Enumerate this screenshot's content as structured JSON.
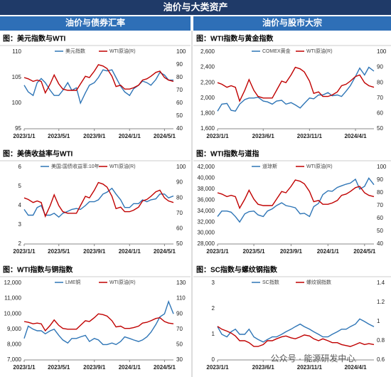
{
  "header": {
    "title": "油价与大类资产",
    "columns": [
      "油价与债券汇率",
      "油价与股市大宗"
    ]
  },
  "watermark": "公众号 · 能源研发中心",
  "chart_data": [
    {
      "type": "line",
      "title": "图：美元指数与WTI",
      "x": [
        "2023/1/1",
        "2023/1/15",
        "2023/2/1",
        "2023/2/15",
        "2023/3/1",
        "2023/3/15",
        "2023/4/1",
        "2023/4/15",
        "2023/5/1",
        "2023/5/15",
        "2023/6/1",
        "2023/6/15",
        "2023/7/1",
        "2023/7/15",
        "2023/8/1",
        "2023/8/15",
        "2023/9/1",
        "2023/9/15",
        "2023/10/1",
        "2023/10/15",
        "2023/11/1",
        "2023/11/15",
        "2023/12/1",
        "2023/12/15",
        "2024/1/1",
        "2024/1/15",
        "2024/2/1",
        "2024/2/15",
        "2024/3/1",
        "2024/3/15",
        "2024/4/1",
        "2024/4/15",
        "2024/5/1",
        "2024/5/15",
        "2024/6/1"
      ],
      "xlim": [
        "2023/1/1",
        "2024/6/1"
      ],
      "xticks": [
        "2023/1/1",
        "2023/5/1",
        "2023/9/1",
        "2024/1/1",
        "2024/5/1"
      ],
      "ylim": [
        95,
        110
      ],
      "yticks": [
        95,
        100,
        105,
        110
      ],
      "y2lim": [
        40,
        100
      ],
      "y2ticks": [
        40,
        50,
        60,
        70,
        80,
        90,
        100
      ],
      "series": [
        {
          "name": "美元指数",
          "color": "#2e75b6",
          "values": [
            103.5,
            102.2,
            101.5,
            104,
            104.8,
            104,
            102.5,
            101.5,
            101.5,
            102.5,
            104,
            102.5,
            103,
            100,
            102,
            103.5,
            104,
            105,
            106.5,
            106.3,
            106.5,
            105,
            103.3,
            102.2,
            101.5,
            102.8,
            103.5,
            104.3,
            104,
            103.5,
            104.6,
            106,
            105.5,
            104.5,
            104.5
          ]
        },
        {
          "name": "WTI原油(R)",
          "color": "#c00000",
          "axis": "y2",
          "values": [
            80,
            79,
            77,
            78,
            77,
            68,
            75,
            82,
            75,
            71,
            70,
            70,
            70,
            75,
            81,
            80,
            85,
            90,
            89,
            87,
            81,
            73,
            74,
            71,
            71,
            72,
            74,
            78,
            79,
            81,
            84,
            85,
            80,
            78,
            77
          ]
        }
      ]
    },
    {
      "type": "line",
      "title": "图：WTI指数与黄金指数",
      "x": [
        "2023/1/1",
        "2023/1/15",
        "2023/2/1",
        "2023/2/15",
        "2023/3/1",
        "2023/3/15",
        "2023/4/1",
        "2023/4/15",
        "2023/5/1",
        "2023/5/15",
        "2023/6/1",
        "2023/6/15",
        "2023/7/1",
        "2023/7/15",
        "2023/8/1",
        "2023/8/15",
        "2023/9/1",
        "2023/9/15",
        "2023/10/1",
        "2023/10/15",
        "2023/11/1",
        "2023/11/15",
        "2023/12/1",
        "2023/12/15",
        "2024/1/1",
        "2024/1/15",
        "2024/2/1",
        "2024/2/15",
        "2024/3/1",
        "2024/3/15",
        "2024/4/1",
        "2024/4/15",
        "2024/5/1",
        "2024/5/15",
        "2024/6/1"
      ],
      "xlim": [
        "2023/1/1",
        "2024/6/1"
      ],
      "xticks": [
        "2023/1/1",
        "2023/6/1",
        "2023/11/1",
        "2024/4/1"
      ],
      "ylim": [
        1600,
        2600
      ],
      "yticks": [
        {
          "value": 1600,
          "label": "1,600"
        },
        {
          "value": 1800,
          "label": "1,800"
        },
        {
          "value": 2000,
          "label": "2,000"
        },
        {
          "value": 2200,
          "label": "2,200"
        },
        {
          "value": 2400,
          "label": "2,400"
        },
        {
          "value": 2600,
          "label": "2,600"
        }
      ],
      "y2lim": [
        50,
        100
      ],
      "y2ticks": [
        50,
        60,
        70,
        80,
        90,
        100
      ],
      "series": [
        {
          "name": "COMEX黄金",
          "color": "#2e75b6",
          "values": [
            1830,
            1920,
            1930,
            1840,
            1830,
            1920,
            1980,
            2000,
            2000,
            2010,
            1960,
            1950,
            1920,
            1960,
            1970,
            1920,
            1940,
            1910,
            1870,
            1930,
            2000,
            1990,
            2040,
            2040,
            2070,
            2030,
            2040,
            2020,
            2090,
            2160,
            2280,
            2390,
            2300,
            2400,
            2350
          ]
        },
        {
          "name": "WTI原油(R)",
          "color": "#c00000",
          "axis": "y2",
          "values": [
            80,
            79,
            77,
            78,
            77,
            68,
            75,
            82,
            75,
            71,
            70,
            70,
            70,
            75,
            81,
            80,
            85,
            90,
            89,
            87,
            81,
            73,
            74,
            71,
            71,
            72,
            74,
            78,
            79,
            81,
            84,
            85,
            80,
            78,
            77
          ]
        }
      ]
    },
    {
      "type": "line",
      "title": "图：美债收益率与WTI",
      "x": [
        "2023/1/1",
        "2023/1/15",
        "2023/2/1",
        "2023/2/15",
        "2023/3/1",
        "2023/3/15",
        "2023/4/1",
        "2023/4/15",
        "2023/5/1",
        "2023/5/15",
        "2023/6/1",
        "2023/6/15",
        "2023/7/1",
        "2023/7/15",
        "2023/8/1",
        "2023/8/15",
        "2023/9/1",
        "2023/9/15",
        "2023/10/1",
        "2023/10/15",
        "2023/11/1",
        "2023/11/15",
        "2023/12/1",
        "2023/12/15",
        "2024/1/1",
        "2024/1/15",
        "2024/2/1",
        "2024/2/15",
        "2024/3/1",
        "2024/3/15",
        "2024/4/1",
        "2024/4/15",
        "2024/5/1",
        "2024/5/15",
        "2024/6/1"
      ],
      "xlim": [
        "2023/1/1",
        "2024/6/1"
      ],
      "xticks": [
        "2023/1/1",
        "2023/5/1",
        "2023/9/1",
        "2024/1/1",
        "2024/5/1"
      ],
      "ylim": [
        2,
        6
      ],
      "yticks": [
        2,
        3,
        4,
        5,
        6
      ],
      "y2lim": [
        50,
        100
      ],
      "y2ticks": [
        50,
        60,
        70,
        80,
        90,
        100
      ],
      "series": [
        {
          "name": "美国:国债收益率:10年",
          "color": "#2e75b6",
          "values": [
            3.8,
            3.5,
            3.5,
            3.9,
            4.0,
            3.5,
            3.5,
            3.6,
            3.4,
            3.6,
            3.7,
            3.8,
            3.85,
            3.8,
            4.0,
            4.2,
            4.2,
            4.3,
            4.6,
            4.7,
            4.9,
            4.6,
            4.3,
            3.9,
            3.9,
            4.1,
            4.1,
            4.3,
            4.2,
            4.3,
            4.35,
            4.6,
            4.6,
            4.4,
            4.5
          ]
        },
        {
          "name": "WTI原油(R)",
          "color": "#c00000",
          "axis": "y2",
          "values": [
            80,
            79,
            77,
            78,
            77,
            68,
            75,
            82,
            75,
            71,
            70,
            70,
            70,
            75,
            81,
            80,
            85,
            90,
            89,
            87,
            81,
            73,
            74,
            71,
            71,
            72,
            74,
            78,
            79,
            81,
            84,
            85,
            80,
            78,
            77
          ]
        }
      ]
    },
    {
      "type": "line",
      "title": "图：WTI指数与道指",
      "x": [
        "2023/1/1",
        "2023/1/15",
        "2023/2/1",
        "2023/2/15",
        "2023/3/1",
        "2023/3/15",
        "2023/4/1",
        "2023/4/15",
        "2023/5/1",
        "2023/5/15",
        "2023/6/1",
        "2023/6/15",
        "2023/7/1",
        "2023/7/15",
        "2023/8/1",
        "2023/8/15",
        "2023/9/1",
        "2023/9/15",
        "2023/10/1",
        "2023/10/15",
        "2023/11/1",
        "2023/11/15",
        "2023/12/1",
        "2023/12/15",
        "2024/1/1",
        "2024/1/15",
        "2024/2/1",
        "2024/2/15",
        "2024/3/1",
        "2024/3/15",
        "2024/4/1",
        "2024/4/15",
        "2024/5/1",
        "2024/5/15",
        "2024/6/1"
      ],
      "xlim": [
        "2023/1/1",
        "2024/6/1"
      ],
      "xticks": [
        "2023/1/1",
        "2023/5/1",
        "2023/9/1",
        "2024/1/1",
        "2024/5/1"
      ],
      "ylim": [
        28000,
        42000
      ],
      "yticks": [
        {
          "value": 28000,
          "label": "28,000"
        },
        {
          "value": 30000,
          "label": "30,000"
        },
        {
          "value": 32000,
          "label": "32,000"
        },
        {
          "value": 34000,
          "label": "34,000"
        },
        {
          "value": 36000,
          "label": "36,000"
        },
        {
          "value": 38000,
          "label": "38,000"
        },
        {
          "value": 40000,
          "label": "40,000"
        },
        {
          "value": 42000,
          "label": "42,000"
        }
      ],
      "y2lim": [
        40,
        100
      ],
      "y2ticks": [
        40,
        50,
        60,
        70,
        80,
        90,
        100
      ],
      "series": [
        {
          "name": "道琼斯",
          "color": "#2e75b6",
          "values": [
            33000,
            34000,
            34000,
            33800,
            33000,
            32000,
            33500,
            33900,
            34000,
            33300,
            33000,
            34000,
            34400,
            35000,
            35500,
            35000,
            34800,
            34600,
            33500,
            33600,
            33000,
            34800,
            35400,
            37000,
            37700,
            37600,
            38300,
            38600,
            38900,
            39100,
            39800,
            38000,
            38500,
            40000,
            38800
          ]
        },
        {
          "name": "WTI原油(R)",
          "color": "#c00000",
          "axis": "y2",
          "values": [
            80,
            79,
            77,
            78,
            77,
            68,
            75,
            82,
            75,
            71,
            70,
            70,
            70,
            75,
            81,
            80,
            85,
            90,
            89,
            87,
            81,
            73,
            74,
            71,
            71,
            72,
            74,
            78,
            79,
            81,
            84,
            85,
            80,
            78,
            77
          ]
        }
      ]
    },
    {
      "type": "line",
      "title": "图：WTI指数与铜指数",
      "x": [
        "2023/1/1",
        "2023/1/15",
        "2023/2/1",
        "2023/2/15",
        "2023/3/1",
        "2023/3/15",
        "2023/4/1",
        "2023/4/15",
        "2023/5/1",
        "2023/5/15",
        "2023/6/1",
        "2023/6/15",
        "2023/7/1",
        "2023/7/15",
        "2023/8/1",
        "2023/8/15",
        "2023/9/1",
        "2023/9/15",
        "2023/10/1",
        "2023/10/15",
        "2023/11/1",
        "2023/11/15",
        "2023/12/1",
        "2023/12/15",
        "2024/1/1",
        "2024/1/15",
        "2024/2/1",
        "2024/2/15",
        "2024/3/1",
        "2024/3/15",
        "2024/4/1",
        "2024/4/15",
        "2024/5/1",
        "2024/5/15",
        "2024/6/1"
      ],
      "xlim": [
        "2023/1/1",
        "2024/6/1"
      ],
      "xticks": [
        "2023/1/1",
        "2023/5/1",
        "2023/9/1",
        "2024/1/1",
        "2024/5/1"
      ],
      "ylim": [
        7000,
        12000
      ],
      "yticks": [
        {
          "value": 7000,
          "label": "7,000"
        },
        {
          "value": 8000,
          "label": "8,000"
        },
        {
          "value": 9000,
          "label": "9,000"
        },
        {
          "value": 10000,
          "label": "10,000"
        },
        {
          "value": 11000,
          "label": "11,000"
        },
        {
          "value": 12000,
          "label": "12,000"
        }
      ],
      "y2lim": [
        30,
        130
      ],
      "y2ticks": [
        30,
        50,
        70,
        90,
        110,
        130
      ],
      "series": [
        {
          "name": "LME铜",
          "color": "#2e75b6",
          "values": [
            8400,
            9200,
            9000,
            8900,
            8900,
            8700,
            8900,
            9000,
            8600,
            8300,
            8100,
            8400,
            8400,
            8500,
            8600,
            8200,
            8400,
            8300,
            8000,
            8000,
            8100,
            8000,
            8200,
            8500,
            8400,
            8300,
            8200,
            8300,
            8500,
            8800,
            9300,
            9800,
            10000,
            10800,
            10000
          ]
        },
        {
          "name": "WTI原油(R)",
          "color": "#c00000",
          "axis": "y2",
          "values": [
            80,
            79,
            77,
            78,
            77,
            68,
            75,
            82,
            75,
            71,
            70,
            70,
            70,
            75,
            81,
            80,
            85,
            90,
            89,
            87,
            81,
            73,
            74,
            71,
            71,
            72,
            74,
            78,
            79,
            81,
            84,
            85,
            80,
            78,
            77
          ]
        }
      ]
    },
    {
      "type": "line",
      "title": "图：SC指数与螺纹钢指数",
      "x": [
        "2023/1/1",
        "2023/1/15",
        "2023/2/1",
        "2023/2/15",
        "2023/3/1",
        "2023/3/15",
        "2023/4/1",
        "2023/4/15",
        "2023/5/1",
        "2023/5/15",
        "2023/6/1",
        "2023/6/15",
        "2023/7/1",
        "2023/7/15",
        "2023/8/1",
        "2023/8/15",
        "2023/9/1",
        "2023/9/15",
        "2023/10/1",
        "2023/10/15",
        "2023/11/1",
        "2023/11/15",
        "2023/12/1",
        "2023/12/15",
        "2024/1/1",
        "2024/1/15",
        "2024/2/1",
        "2024/2/15",
        "2024/3/1",
        "2024/3/15",
        "2024/4/1",
        "2024/4/15",
        "2024/5/1",
        "2024/5/15",
        "2024/6/1"
      ],
      "xlim": [
        "2023/1/1",
        "2024/6/1"
      ],
      "xticks": [
        "2023/1/1",
        "2023/6/1",
        "2023/11/1",
        "2024/4/1"
      ],
      "ylim": [
        0,
        3
      ],
      "yticks": [
        0,
        1,
        2,
        3
      ],
      "y2lim": [
        0.6,
        1.4
      ],
      "y2ticks": [
        0.6,
        0.8,
        1,
        1.2,
        1.4
      ],
      "series": [
        {
          "name": "SC指数",
          "color": "#2e75b6",
          "values": [
            1.3,
            1.0,
            0.9,
            1.1,
            1.2,
            1.0,
            1.0,
            1.2,
            0.9,
            0.8,
            0.7,
            0.8,
            0.9,
            0.9,
            1.0,
            1.1,
            1.2,
            1.3,
            1.4,
            1.3,
            1.2,
            1.1,
            1.0,
            0.9,
            0.9,
            1.0,
            1.1,
            1.2,
            1.2,
            1.3,
            1.4,
            1.6,
            1.5,
            1.4,
            1.3
          ]
        },
        {
          "name": "螺纹钢指数",
          "color": "#c00000",
          "axis": "y2",
          "values": [
            0.95,
            0.92,
            0.9,
            0.88,
            0.85,
            0.8,
            0.8,
            0.78,
            0.74,
            0.74,
            0.76,
            0.8,
            0.8,
            0.82,
            0.84,
            0.85,
            0.83,
            0.82,
            0.84,
            0.86,
            0.85,
            0.82,
            0.8,
            0.82,
            0.8,
            0.78,
            0.78,
            0.76,
            0.75,
            0.74,
            0.76,
            0.78,
            0.76,
            0.77,
            0.76
          ]
        }
      ]
    }
  ]
}
